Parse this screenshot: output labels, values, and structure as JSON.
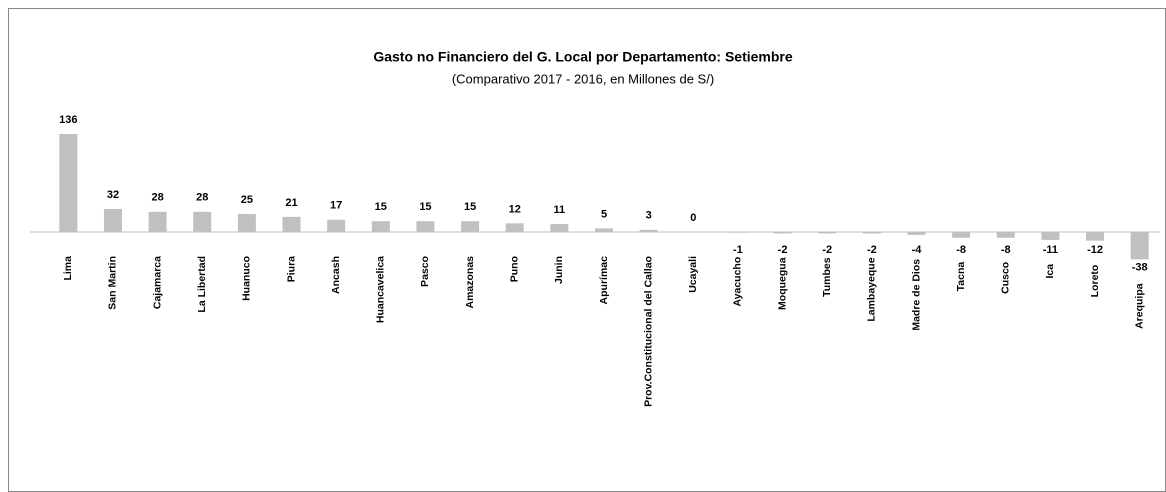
{
  "chart_data": {
    "type": "bar",
    "title": "Gasto no Financiero del G. Local por Departamento: Setiembre",
    "subtitle": "(Comparativo 2017 - 2016,  en Millones de S/)",
    "categories": [
      "Lima",
      "San Martin",
      "Cajamarca",
      "La Libertad",
      "Huanuco",
      "Piura",
      "Ancash",
      "Huancavelica",
      "Pasco",
      "Amazonas",
      "Puno",
      "Junin",
      "Apurímac",
      "Prov.Constitucional del Callao",
      "Ucayali",
      "Ayacucho",
      "Moquegua",
      "Tumbes",
      "Lambayeque",
      "Madre de Dios",
      "Tacna",
      "Cusco",
      "Ica",
      "Loreto",
      "Arequipa"
    ],
    "values": [
      136,
      32,
      28,
      28,
      25,
      21,
      17,
      15,
      15,
      15,
      12,
      11,
      5,
      3,
      0,
      -1,
      -2,
      -2,
      -2,
      -4,
      -8,
      -8,
      -11,
      -12,
      -38
    ],
    "color": "#c0c0c0"
  }
}
